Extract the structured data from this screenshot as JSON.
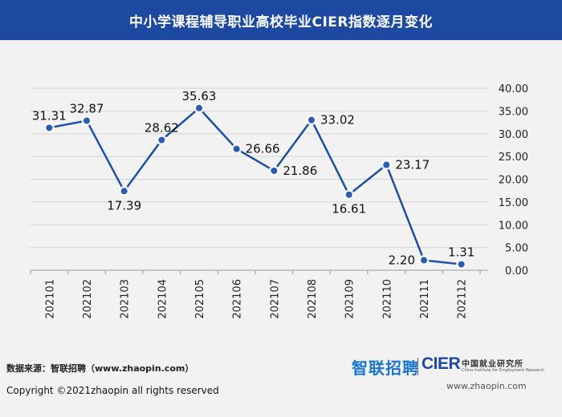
{
  "title": "中小学课程辅导职业高校毕业CIER指数逐月变化",
  "source": "数据来源：智联招聘（www.zhaopin.com）",
  "copyright": "Copyright ©2021zhaopin all rights reserved",
  "logos": {
    "zhilian": "智联招聘",
    "cier": "CIER",
    "institute": "中国就业研究所",
    "institute_en": "China Institute for Employment Research",
    "url": "www.zhaopin.com"
  },
  "colors": {
    "header_bg": "#1d4aa0",
    "line": "#1f4fa3",
    "marker": "#2a5db0",
    "background": "#f2f2f2"
  },
  "chart_data": {
    "type": "line",
    "title": "中小学课程辅导职业高校毕业CIER指数逐月变化",
    "categories": [
      "202101",
      "202102",
      "202103",
      "202104",
      "202105",
      "202106",
      "202107",
      "202108",
      "202109",
      "202110",
      "202111",
      "202112"
    ],
    "values": [
      31.31,
      32.87,
      17.39,
      28.62,
      35.63,
      26.66,
      21.86,
      33.02,
      16.61,
      23.17,
      2.2,
      1.31
    ],
    "value_labels": [
      "31.31",
      "32.87",
      "17.39",
      "28.62",
      "35.63",
      "26.66",
      "21.86",
      "33.02",
      "16.61",
      "23.17",
      "2.20",
      "1.31"
    ],
    "ylim": [
      0,
      40
    ],
    "y_ticks": [
      "0.00",
      "5.00",
      "10.00",
      "15.00",
      "20.00",
      "25.00",
      "30.00",
      "35.00",
      "40.00"
    ],
    "y_axis_side": "right",
    "grid": true,
    "xlabel": "",
    "ylabel": ""
  }
}
